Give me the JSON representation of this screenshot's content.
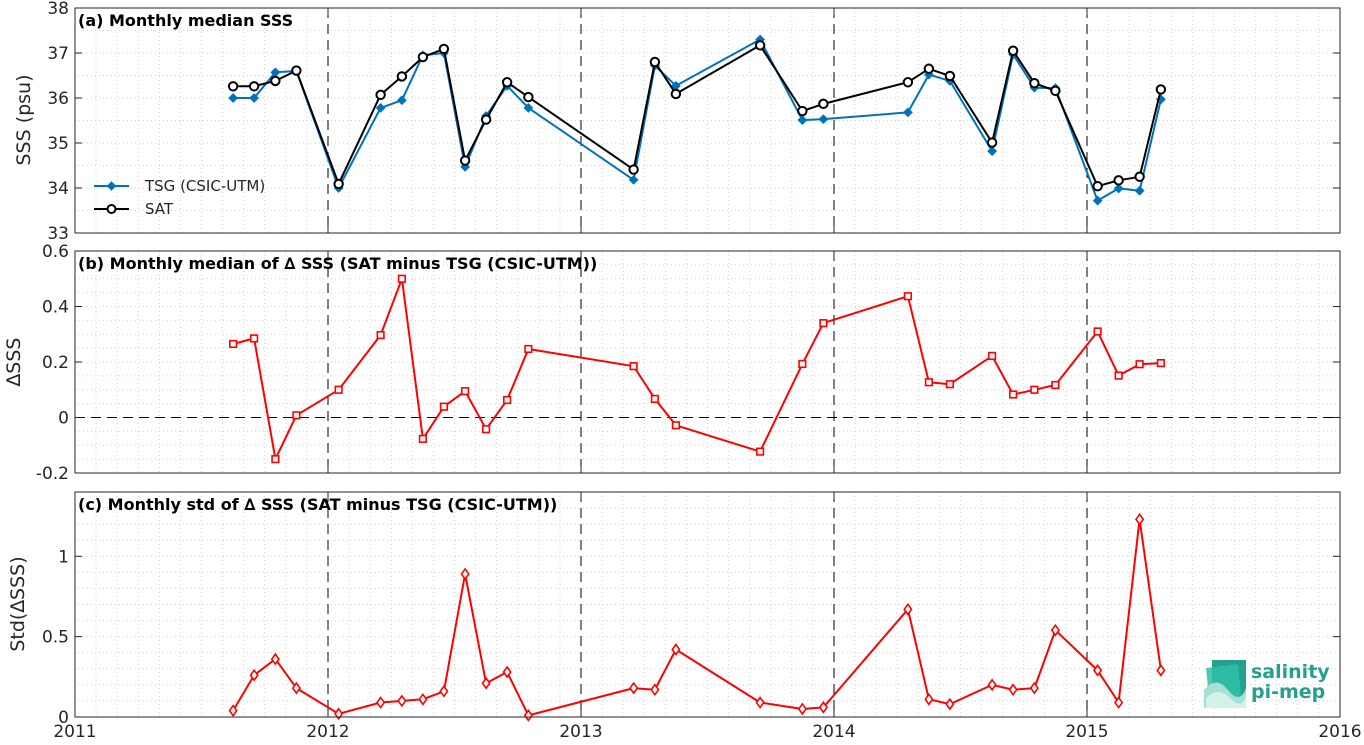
{
  "figure": {
    "x_axis": {
      "tick_labels": [
        "2011",
        "2012",
        "2013",
        "2014",
        "2015",
        "2016"
      ],
      "tick_values": [
        2011,
        2012,
        2013,
        2014,
        2015,
        2016
      ],
      "range": [
        2011,
        2016
      ]
    },
    "logo": {
      "line1": "salinity",
      "line2": "pi-mep"
    }
  },
  "chart_data": [
    {
      "type": "line",
      "title": "(a) Monthly median SSS",
      "ylabel": "SSS (psu)",
      "ylim": [
        33,
        38
      ],
      "yticks": [
        33,
        34,
        35,
        36,
        37,
        38
      ],
      "grid": true,
      "legend_position": "lower-left",
      "series": [
        {
          "name": "TSG (CSIC-UTM)",
          "color": "#0072bd",
          "marker": "filled-diamond",
          "x": [
            2011.625,
            2011.708,
            2011.792,
            2011.875,
            2012.042,
            2012.208,
            2012.292,
            2012.375,
            2012.458,
            2012.542,
            2012.625,
            2012.708,
            2012.792,
            2013.208,
            2013.292,
            2013.375,
            2013.708,
            2013.875,
            2013.958,
            2014.292,
            2014.375,
            2014.458,
            2014.625,
            2014.708,
            2014.792,
            2014.875,
            2015.042,
            2015.125,
            2015.208,
            2015.292
          ],
          "y": [
            36.0,
            36.0,
            36.57,
            36.6,
            34.0,
            35.78,
            35.95,
            36.95,
            37.0,
            34.47,
            35.6,
            36.27,
            35.78,
            34.18,
            36.72,
            36.27,
            37.3,
            35.51,
            35.53,
            35.68,
            36.52,
            36.38,
            34.82,
            36.97,
            36.23,
            36.22,
            33.72,
            33.99,
            33.94,
            35.97
          ]
        },
        {
          "name": "SAT",
          "color": "#000000",
          "marker": "open-circle",
          "x": [
            2011.625,
            2011.708,
            2011.792,
            2011.875,
            2012.042,
            2012.208,
            2012.292,
            2012.375,
            2012.458,
            2012.542,
            2012.625,
            2012.708,
            2012.792,
            2013.208,
            2013.292,
            2013.375,
            2013.708,
            2013.875,
            2013.958,
            2014.292,
            2014.375,
            2014.458,
            2014.625,
            2014.708,
            2014.792,
            2014.875,
            2015.042,
            2015.125,
            2015.208,
            2015.292
          ],
          "y": [
            36.26,
            36.26,
            36.38,
            36.61,
            34.09,
            36.07,
            36.48,
            36.91,
            37.09,
            34.61,
            35.52,
            36.35,
            36.02,
            34.41,
            36.8,
            36.09,
            37.17,
            35.71,
            35.87,
            36.35,
            36.65,
            36.49,
            35.01,
            37.05,
            36.33,
            36.16,
            34.04,
            34.17,
            34.25,
            36.19
          ]
        }
      ]
    },
    {
      "type": "line",
      "title": "(b) Monthly median of ∆ SSS (SAT minus TSG (CSIC-UTM))",
      "ylabel": "∆SSS",
      "ylim": [
        -0.2,
        0.6
      ],
      "yticks": [
        -0.2,
        0,
        0.2,
        0.4,
        0.6
      ],
      "ytick_labels": [
        "-0.2",
        "0",
        "0.2",
        "0.4",
        "0.6"
      ],
      "grid": true,
      "reference_line": 0,
      "series": [
        {
          "color": "#ff0000",
          "marker": "open-square",
          "x": [
            2011.625,
            2011.708,
            2011.792,
            2011.875,
            2012.042,
            2012.208,
            2012.292,
            2012.375,
            2012.458,
            2012.542,
            2012.625,
            2012.708,
            2012.792,
            2013.208,
            2013.292,
            2013.375,
            2013.708,
            2013.875,
            2013.958,
            2014.292,
            2014.375,
            2014.458,
            2014.625,
            2014.708,
            2014.792,
            2014.875,
            2015.042,
            2015.125,
            2015.208,
            2015.292
          ],
          "y": [
            0.265,
            0.285,
            -0.15,
            0.008,
            0.1,
            0.297,
            0.5,
            -0.077,
            0.039,
            0.095,
            -0.042,
            0.063,
            0.247,
            0.185,
            0.067,
            -0.028,
            -0.123,
            0.193,
            0.34,
            0.437,
            0.127,
            0.12,
            0.222,
            0.083,
            0.1,
            0.117,
            0.31,
            0.151,
            0.192,
            0.196
          ]
        }
      ]
    },
    {
      "type": "line",
      "title": "(c) Monthly std of ∆ SSS (SAT minus TSG (CSIC-UTM))",
      "ylabel": "Std(∆SSS)",
      "ylim": [
        0,
        1.4
      ],
      "yticks": [
        0,
        0.5,
        1
      ],
      "ytick_labels": [
        "0",
        "0.5",
        "1"
      ],
      "grid": true,
      "series": [
        {
          "color": "#ff0000",
          "marker": "open-diamond",
          "x": [
            2011.625,
            2011.708,
            2011.792,
            2011.875,
            2012.042,
            2012.208,
            2012.292,
            2012.375,
            2012.458,
            2012.542,
            2012.625,
            2012.708,
            2012.792,
            2013.208,
            2013.292,
            2013.375,
            2013.708,
            2013.875,
            2013.958,
            2014.292,
            2014.375,
            2014.458,
            2014.625,
            2014.708,
            2014.792,
            2014.875,
            2015.042,
            2015.125,
            2015.208,
            2015.292
          ],
          "y": [
            0.04,
            0.26,
            0.36,
            0.18,
            0.02,
            0.09,
            0.1,
            0.11,
            0.16,
            0.89,
            0.21,
            0.28,
            0.01,
            0.18,
            0.17,
            0.42,
            0.09,
            0.05,
            0.06,
            0.67,
            0.11,
            0.08,
            0.2,
            0.17,
            0.18,
            0.54,
            0.29,
            0.09,
            1.23,
            0.29
          ]
        }
      ]
    }
  ]
}
